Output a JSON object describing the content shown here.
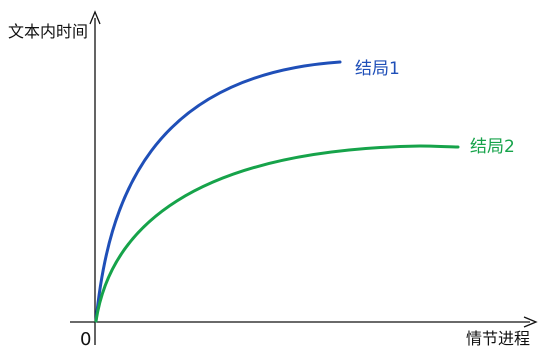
{
  "axes": {
    "y_label": "文本内时间",
    "x_label": "情节进程",
    "origin_label": "0"
  },
  "curves": [
    {
      "id": "curve-1",
      "label": "结局1",
      "color": "#1f4fb8"
    },
    {
      "id": "curve-2",
      "label": "结局2",
      "color": "#16a34a"
    }
  ],
  "colors": {
    "axis": "#111111"
  }
}
